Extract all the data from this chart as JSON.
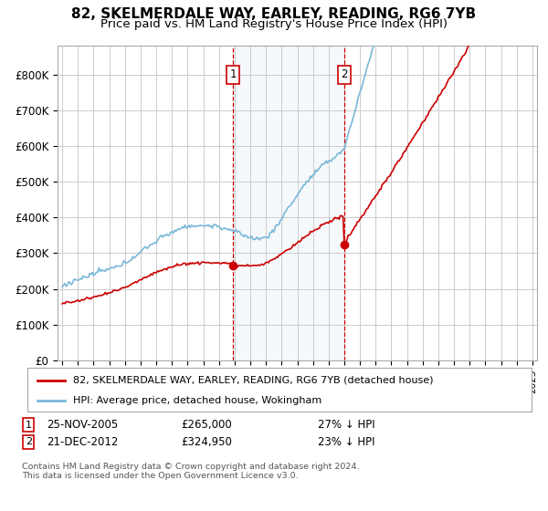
{
  "title": "82, SKELMERDALE WAY, EARLEY, READING, RG6 7YB",
  "subtitle": "Price paid vs. HM Land Registry's House Price Index (HPI)",
  "ylim": [
    0,
    880000
  ],
  "yticks": [
    0,
    100000,
    200000,
    300000,
    400000,
    500000,
    600000,
    700000,
    800000
  ],
  "ytick_labels": [
    "£0",
    "£100K",
    "£200K",
    "£300K",
    "£400K",
    "£500K",
    "£600K",
    "£700K",
    "£800K"
  ],
  "background_color": "#ffffff",
  "plot_bg_color": "#ffffff",
  "grid_color": "#cccccc",
  "hpi_color": "#7ab8d9",
  "price_color": "#cc0000",
  "sale1_date": 2005.9,
  "sale1_price": 265000,
  "sale2_date": 2012.97,
  "sale2_price": 324950,
  "legend_line1": "82, SKELMERDALE WAY, EARLEY, READING, RG6 7YB (detached house)",
  "legend_line2": "HPI: Average price, detached house, Wokingham",
  "footnote": "Contains HM Land Registry data © Crown copyright and database right 2024.\nThis data is licensed under the Open Government Licence v3.0.",
  "title_fontsize": 11,
  "subtitle_fontsize": 9.5
}
